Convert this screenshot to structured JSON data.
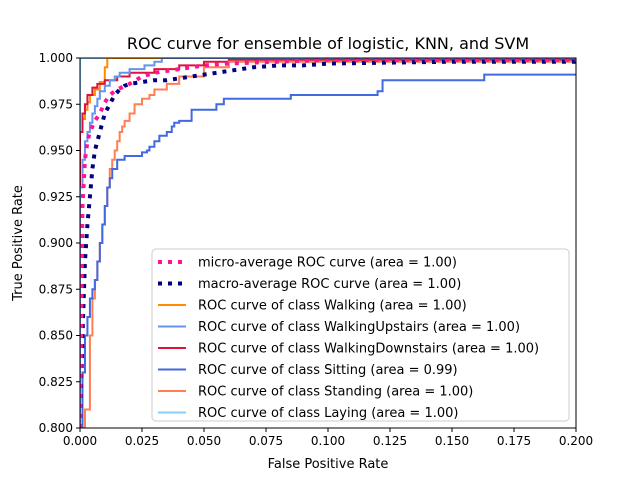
{
  "chart_data": {
    "type": "line",
    "title": "ROC curve for ensemble of logistic, KNN, and SVM",
    "xlabel": "False Positive Rate",
    "ylabel": "True Positive Rate",
    "xlim": [
      0.0,
      0.2
    ],
    "ylim": [
      0.8,
      1.0
    ],
    "xticks": [
      "0.000",
      "0.025",
      "0.050",
      "0.075",
      "0.100",
      "0.125",
      "0.150",
      "0.175",
      "0.200"
    ],
    "yticks": [
      "0.800",
      "0.825",
      "0.850",
      "0.875",
      "0.900",
      "0.925",
      "0.950",
      "0.975",
      "1.000"
    ],
    "grid": false,
    "legend_position": "lower-right",
    "series": [
      {
        "name": "micro-average ROC curve (area = 1.00)",
        "color": "#ff1493",
        "style": "dotted",
        "x": [
          0.0,
          0.001,
          0.002,
          0.003,
          0.004,
          0.005,
          0.006,
          0.008,
          0.01,
          0.012,
          0.015,
          0.02,
          0.025,
          0.03,
          0.04,
          0.05,
          0.06,
          0.08,
          0.1,
          0.2
        ],
        "y": [
          0.8,
          0.92,
          0.945,
          0.955,
          0.96,
          0.963,
          0.966,
          0.97,
          0.976,
          0.98,
          0.983,
          0.986,
          0.99,
          0.992,
          0.994,
          0.996,
          0.997,
          0.998,
          0.999,
          0.999
        ]
      },
      {
        "name": "macro-average ROC curve (area = 1.00)",
        "color": "#000080",
        "style": "dotted",
        "x": [
          0.0,
          0.001,
          0.002,
          0.003,
          0.004,
          0.005,
          0.006,
          0.007,
          0.008,
          0.009,
          0.01,
          0.012,
          0.014,
          0.016,
          0.018,
          0.02,
          0.025,
          0.03,
          0.035,
          0.04,
          0.045,
          0.05,
          0.055,
          0.06,
          0.07,
          0.08,
          0.09,
          0.1,
          0.15,
          0.2
        ],
        "y": [
          0.8,
          0.85,
          0.89,
          0.91,
          0.925,
          0.94,
          0.95,
          0.955,
          0.96,
          0.965,
          0.97,
          0.975,
          0.98,
          0.983,
          0.985,
          0.986,
          0.987,
          0.988,
          0.988,
          0.989,
          0.99,
          0.991,
          0.992,
          0.993,
          0.995,
          0.996,
          0.996,
          0.997,
          0.998,
          0.998
        ]
      },
      {
        "name": "ROC curve of class Walking (area = 1.00)",
        "color": "#ff8c00",
        "style": "solid",
        "x": [
          0.0,
          0.0,
          0.001,
          0.001,
          0.002,
          0.002,
          0.003,
          0.003,
          0.004,
          0.004,
          0.006,
          0.006,
          0.008,
          0.008,
          0.01,
          0.01,
          0.011,
          0.011,
          0.2
        ],
        "y": [
          0.8,
          0.96,
          0.96,
          0.967,
          0.967,
          0.972,
          0.972,
          0.976,
          0.976,
          0.98,
          0.98,
          0.983,
          0.983,
          0.987,
          0.987,
          0.995,
          0.995,
          1.0,
          1.0
        ]
      },
      {
        "name": "ROC curve of class WalkingUpstairs (area = 1.00)",
        "color": "#6495ed",
        "style": "solid",
        "x": [
          0.0,
          0.0,
          0.001,
          0.001,
          0.002,
          0.002,
          0.003,
          0.003,
          0.004,
          0.004,
          0.005,
          0.005,
          0.006,
          0.006,
          0.007,
          0.007,
          0.008,
          0.008,
          0.01,
          0.01,
          0.012,
          0.012,
          0.014,
          0.014,
          0.016,
          0.016,
          0.02,
          0.02,
          0.026,
          0.026,
          0.03,
          0.03,
          0.033,
          0.033,
          0.2
        ],
        "y": [
          0.8,
          0.93,
          0.93,
          0.945,
          0.945,
          0.955,
          0.955,
          0.96,
          0.96,
          0.965,
          0.965,
          0.97,
          0.97,
          0.974,
          0.974,
          0.978,
          0.978,
          0.982,
          0.982,
          0.985,
          0.985,
          0.988,
          0.988,
          0.99,
          0.99,
          0.992,
          0.992,
          0.994,
          0.994,
          0.996,
          0.996,
          0.998,
          0.998,
          1.0,
          1.0
        ]
      },
      {
        "name": "ROC curve of class WalkingDownstairs (area = 1.00)",
        "color": "#dc143c",
        "style": "solid",
        "x": [
          0.0,
          0.0,
          0.001,
          0.001,
          0.002,
          0.002,
          0.003,
          0.003,
          0.005,
          0.005,
          0.007,
          0.007,
          0.01,
          0.01,
          0.015,
          0.015,
          0.02,
          0.02,
          0.03,
          0.03,
          0.04,
          0.04,
          0.05,
          0.05,
          0.06,
          0.06,
          0.2
        ],
        "y": [
          0.8,
          0.96,
          0.96,
          0.97,
          0.97,
          0.975,
          0.975,
          0.98,
          0.98,
          0.984,
          0.984,
          0.986,
          0.986,
          0.988,
          0.988,
          0.99,
          0.99,
          0.992,
          0.992,
          0.994,
          0.994,
          0.996,
          0.996,
          0.998,
          0.998,
          0.999,
          0.999
        ]
      },
      {
        "name": "ROC curve of class Sitting (area = 0.99)",
        "color": "#4169e1",
        "style": "solid",
        "x": [
          0.0,
          0.0,
          0.001,
          0.001,
          0.002,
          0.002,
          0.003,
          0.003,
          0.004,
          0.004,
          0.005,
          0.005,
          0.006,
          0.006,
          0.007,
          0.007,
          0.008,
          0.008,
          0.009,
          0.009,
          0.01,
          0.01,
          0.011,
          0.011,
          0.012,
          0.012,
          0.013,
          0.013,
          0.015,
          0.015,
          0.018,
          0.018,
          0.025,
          0.025,
          0.027,
          0.027,
          0.028,
          0.028,
          0.03,
          0.03,
          0.032,
          0.032,
          0.035,
          0.035,
          0.037,
          0.037,
          0.038,
          0.038,
          0.039,
          0.039,
          0.04,
          0.04,
          0.045,
          0.045,
          0.055,
          0.055,
          0.058,
          0.058,
          0.065,
          0.065,
          0.085,
          0.085,
          0.12,
          0.12,
          0.122,
          0.122,
          0.163,
          0.163,
          0.2
        ],
        "y": [
          0.8,
          0.8,
          0.8,
          0.83,
          0.83,
          0.85,
          0.85,
          0.86,
          0.86,
          0.87,
          0.87,
          0.875,
          0.875,
          0.88,
          0.88,
          0.89,
          0.89,
          0.9,
          0.9,
          0.91,
          0.91,
          0.92,
          0.92,
          0.93,
          0.93,
          0.935,
          0.935,
          0.94,
          0.94,
          0.945,
          0.945,
          0.947,
          0.947,
          0.949,
          0.949,
          0.95,
          0.95,
          0.952,
          0.952,
          0.955,
          0.955,
          0.958,
          0.958,
          0.96,
          0.96,
          0.963,
          0.963,
          0.965,
          0.965,
          0.965,
          0.965,
          0.966,
          0.966,
          0.972,
          0.972,
          0.975,
          0.975,
          0.978,
          0.978,
          0.978,
          0.978,
          0.98,
          0.98,
          0.982,
          0.982,
          0.988,
          0.988,
          0.991,
          0.991
        ]
      },
      {
        "name": "ROC curve of class Standing (area = 1.00)",
        "color": "#ff7f50",
        "style": "solid",
        "x": [
          0.002,
          0.002,
          0.004,
          0.004,
          0.005,
          0.005,
          0.006,
          0.006,
          0.007,
          0.007,
          0.008,
          0.008,
          0.009,
          0.009,
          0.01,
          0.01,
          0.011,
          0.011,
          0.012,
          0.012,
          0.013,
          0.013,
          0.014,
          0.014,
          0.015,
          0.015,
          0.016,
          0.016,
          0.017,
          0.017,
          0.018,
          0.018,
          0.02,
          0.02,
          0.022,
          0.022,
          0.025,
          0.025,
          0.028,
          0.028,
          0.03,
          0.03,
          0.035,
          0.035,
          0.04,
          0.04,
          0.05,
          0.05,
          0.06,
          0.06,
          0.2
        ],
        "y": [
          0.8,
          0.81,
          0.81,
          0.85,
          0.85,
          0.87,
          0.87,
          0.88,
          0.88,
          0.89,
          0.89,
          0.9,
          0.9,
          0.91,
          0.91,
          0.92,
          0.92,
          0.93,
          0.93,
          0.94,
          0.94,
          0.945,
          0.945,
          0.95,
          0.95,
          0.955,
          0.955,
          0.96,
          0.96,
          0.963,
          0.963,
          0.966,
          0.966,
          0.97,
          0.97,
          0.975,
          0.975,
          0.978,
          0.978,
          0.98,
          0.98,
          0.983,
          0.983,
          0.986,
          0.986,
          0.99,
          0.99,
          0.995,
          0.995,
          0.998,
          0.998
        ]
      },
      {
        "name": "ROC curve of class Laying (area = 1.00)",
        "color": "#87cefa",
        "style": "solid",
        "x": [
          0.0,
          0.0,
          0.2
        ],
        "y": [
          0.8,
          1.0,
          1.0
        ]
      }
    ]
  }
}
